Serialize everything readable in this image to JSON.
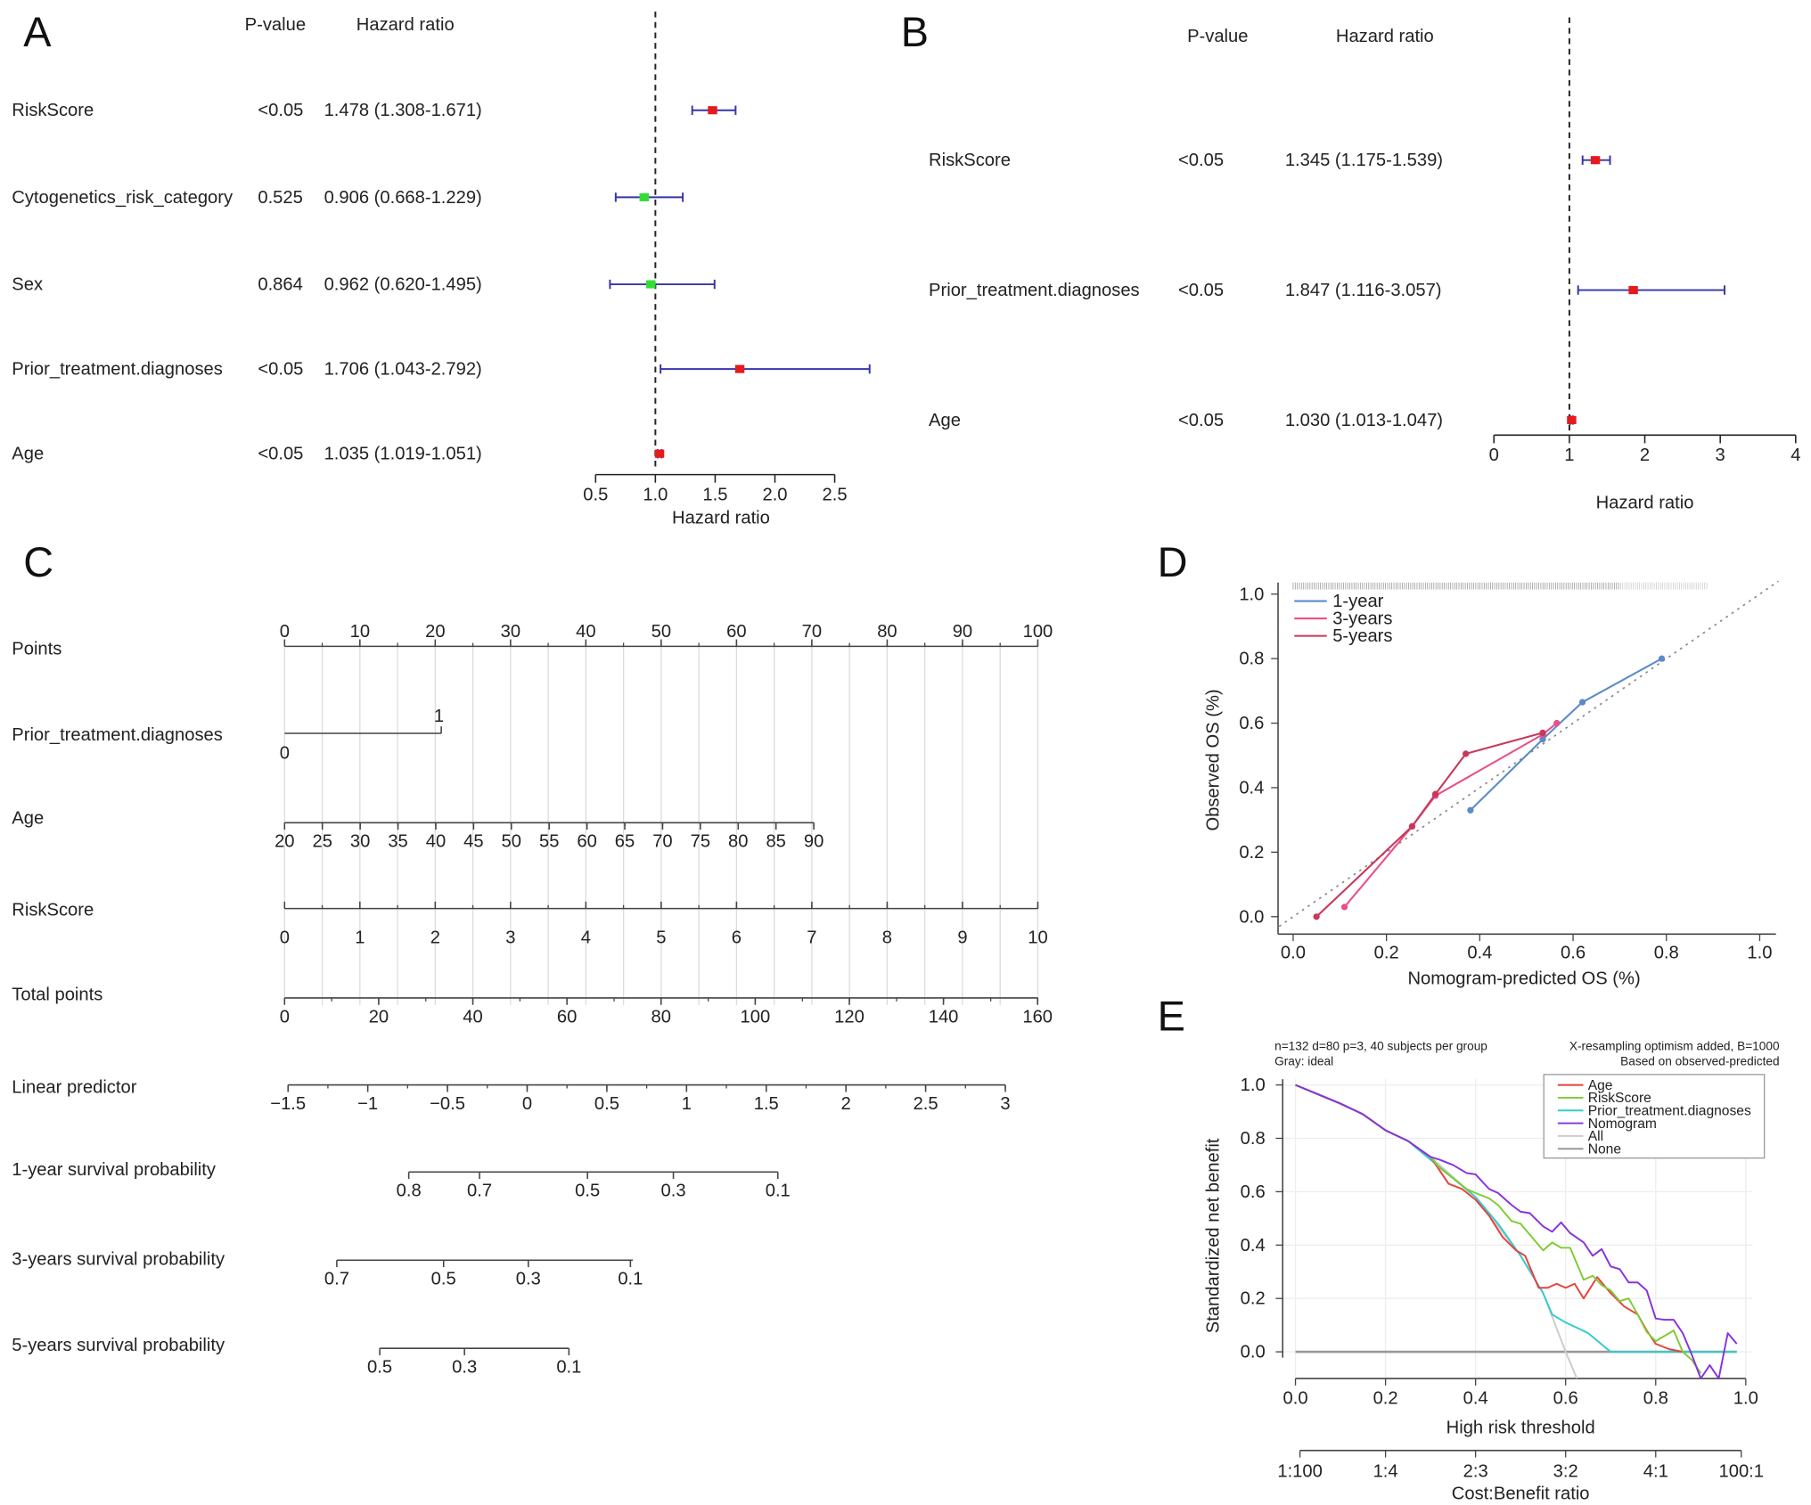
{
  "panels": [
    "A",
    "B",
    "C",
    "D",
    "E"
  ],
  "chart_data": [
    {
      "type": "forest",
      "panel": "A",
      "col_headers": [
        "P-value",
        "Hazard ratio"
      ],
      "xlabel": "Hazard ratio",
      "xlim": [
        0.5,
        2.5
      ],
      "ticks": [
        "0.5",
        "1.0",
        "1.5",
        "2.0",
        "2.5"
      ],
      "reference_line": 1,
      "rows": [
        {
          "label": "RiskScore",
          "p": "<0.05",
          "hr_text": "1.478 (1.308-1.671)",
          "hr": 1.478,
          "lo": 1.308,
          "hi": 1.671,
          "color": "#e41a1c"
        },
        {
          "label": "Cytogenetics_risk_category",
          "p": "0.525",
          "hr_text": "0.906 (0.668-1.229)",
          "hr": 0.906,
          "lo": 0.668,
          "hi": 1.229,
          "color": "#33dd33"
        },
        {
          "label": "Sex",
          "p": "0.864",
          "hr_text": "0.962 (0.620-1.495)",
          "hr": 0.962,
          "lo": 0.62,
          "hi": 1.495,
          "color": "#33dd33"
        },
        {
          "label": "Prior_treatment.diagnoses",
          "p": "<0.05",
          "hr_text": "1.706 (1.043-2.792)",
          "hr": 1.706,
          "lo": 1.043,
          "hi": 2.792,
          "color": "#e41a1c"
        },
        {
          "label": "Age",
          "p": "<0.05",
          "hr_text": "1.035 (1.019-1.051)",
          "hr": 1.035,
          "lo": 1.019,
          "hi": 1.051,
          "color": "#e41a1c"
        }
      ]
    },
    {
      "type": "forest",
      "panel": "B",
      "col_headers": [
        "P-value",
        "Hazard ratio"
      ],
      "xlabel": "Hazard ratio",
      "xlim": [
        0,
        4
      ],
      "ticks": [
        "0",
        "1",
        "2",
        "3",
        "4"
      ],
      "reference_line": 1,
      "rows": [
        {
          "label": "RiskScore",
          "p": "<0.05",
          "hr_text": "1.345 (1.175-1.539)",
          "hr": 1.345,
          "lo": 1.175,
          "hi": 1.539,
          "color": "#e41a1c"
        },
        {
          "label": "Prior_treatment.diagnoses",
          "p": "<0.05",
          "hr_text": "1.847 (1.116-3.057)",
          "hr": 1.847,
          "lo": 1.116,
          "hi": 3.057,
          "color": "#e41a1c"
        },
        {
          "label": "Age",
          "p": "<0.05",
          "hr_text": "1.030 (1.013-1.047)",
          "hr": 1.03,
          "lo": 1.013,
          "hi": 1.047,
          "color": "#e41a1c"
        }
      ]
    },
    {
      "type": "nomogram",
      "panel": "C",
      "scales": [
        {
          "label": "Points",
          "ticks": [
            "0",
            "10",
            "20",
            "30",
            "40",
            "50",
            "60",
            "70",
            "80",
            "90",
            "100"
          ]
        },
        {
          "label": "Prior_treatment.diagnoses",
          "ticks": [
            "0",
            "1"
          ]
        },
        {
          "label": "Age",
          "ticks": [
            "20",
            "25",
            "30",
            "35",
            "40",
            "45",
            "50",
            "55",
            "60",
            "65",
            "70",
            "75",
            "80",
            "85",
            "90"
          ]
        },
        {
          "label": "RiskScore",
          "ticks": [
            "0",
            "1",
            "2",
            "3",
            "4",
            "5",
            "6",
            "7",
            "8",
            "9",
            "10"
          ]
        },
        {
          "label": "Total points",
          "ticks": [
            "0",
            "20",
            "40",
            "60",
            "80",
            "100",
            "120",
            "140",
            "160"
          ]
        },
        {
          "label": "Linear predictor",
          "ticks": [
            "−1.5",
            "−1",
            "−0.5",
            "0",
            "0.5",
            "1",
            "1.5",
            "2",
            "2.5",
            "3"
          ]
        },
        {
          "label": "1-year survival probability",
          "ticks": [
            "0.8",
            "0.7",
            "0.5",
            "0.3",
            "0.1"
          ]
        },
        {
          "label": "3-years survival probability",
          "ticks": [
            "0.7",
            "0.5",
            "0.3",
            "0.1"
          ]
        },
        {
          "label": "5-years survival probability",
          "ticks": [
            "0.5",
            "0.3",
            "0.1"
          ]
        }
      ]
    },
    {
      "type": "line",
      "panel": "D",
      "xlabel": "Nomogram-predicted OS (%)",
      "ylabel": "Observed OS (%)",
      "xlim": [
        0,
        1
      ],
      "ylim": [
        0,
        1
      ],
      "ticks": [
        "0.0",
        "0.2",
        "0.4",
        "0.6",
        "0.8",
        "1.0"
      ],
      "legend": "top-left",
      "ideal_line": "dotted diagonal",
      "series": [
        {
          "name": "1-year",
          "color": "#5b8bc9",
          "x": [
            0.38,
            0.535,
            0.62,
            0.79
          ],
          "y": [
            0.33,
            0.55,
            0.665,
            0.8
          ]
        },
        {
          "name": "3-years",
          "color": "#e8508a",
          "x": [
            0.11,
            0.255,
            0.305,
            0.535,
            0.565
          ],
          "y": [
            0.03,
            0.28,
            0.375,
            0.565,
            0.6
          ]
        },
        {
          "name": "5-years",
          "color": "#c8385a",
          "x": [
            0.05,
            0.255,
            0.305,
            0.37,
            0.535
          ],
          "y": [
            0.0,
            0.28,
            0.38,
            0.505,
            0.57
          ]
        }
      ]
    },
    {
      "type": "line",
      "panel": "E",
      "xlabel": "High risk threshold",
      "ylabel": "Standardized net benefit",
      "xlim": [
        0,
        1
      ],
      "ylim": [
        -0.1,
        1
      ],
      "xticks": [
        "0.0",
        "0.2",
        "0.4",
        "0.6",
        "0.8",
        "1.0"
      ],
      "yticks": [
        "0.0",
        "0.2",
        "0.4",
        "0.6",
        "0.8",
        "1.0"
      ],
      "secondary_xlabel": "Cost:Benefit ratio",
      "secondary_ticks": [
        "1:100",
        "1:4",
        "2:3",
        "3:2",
        "4:1",
        "100:1"
      ],
      "notes": [
        "n=132 d=80 p=3, 40 subjects per group",
        "Gray: ideal",
        "X-resampling optimism added, B=1000",
        "Based on observed-predicted"
      ],
      "legend": "top-right",
      "series": [
        {
          "name": "Age",
          "color": "#e8413c",
          "x": [
            0,
            0.05,
            0.1,
            0.15,
            0.2,
            0.25,
            0.3,
            0.32,
            0.34,
            0.37,
            0.4,
            0.43,
            0.46,
            0.49,
            0.51,
            0.54,
            0.56,
            0.58,
            0.6,
            0.62,
            0.64,
            0.67,
            0.7,
            0.73,
            0.76,
            0.78,
            0.8,
            0.83,
            0.86
          ],
          "y": [
            1,
            0.965,
            0.93,
            0.89,
            0.83,
            0.79,
            0.73,
            0.68,
            0.63,
            0.61,
            0.57,
            0.51,
            0.43,
            0.38,
            0.36,
            0.24,
            0.24,
            0.255,
            0.24,
            0.255,
            0.2,
            0.28,
            0.22,
            0.17,
            0.14,
            0.08,
            0.03,
            0.01,
            0
          ]
        },
        {
          "name": "RiskScore",
          "color": "#7fcc33",
          "x": [
            0,
            0.05,
            0.1,
            0.15,
            0.2,
            0.25,
            0.3,
            0.32,
            0.35,
            0.38,
            0.4,
            0.43,
            0.45,
            0.48,
            0.5,
            0.52,
            0.55,
            0.57,
            0.59,
            0.61,
            0.64,
            0.66,
            0.68,
            0.7,
            0.72,
            0.74,
            0.76,
            0.78,
            0.8,
            0.82,
            0.84,
            0.86,
            0.88,
            0.9
          ],
          "y": [
            1,
            0.965,
            0.93,
            0.89,
            0.83,
            0.79,
            0.73,
            0.69,
            0.65,
            0.61,
            0.595,
            0.575,
            0.55,
            0.49,
            0.48,
            0.44,
            0.38,
            0.41,
            0.39,
            0.39,
            0.27,
            0.285,
            0.25,
            0.23,
            0.19,
            0.2,
            0.14,
            0.075,
            0.04,
            0.06,
            0.08,
            0,
            -0.03,
            -0.08
          ]
        },
        {
          "name": "Prior_treatment.diagnoses",
          "color": "#33cccc",
          "x": [
            0,
            0.05,
            0.1,
            0.15,
            0.2,
            0.25,
            0.3,
            0.35,
            0.4,
            0.45,
            0.5,
            0.55,
            0.57,
            0.6,
            0.65,
            0.7,
            0.98
          ],
          "y": [
            1,
            0.965,
            0.93,
            0.89,
            0.83,
            0.79,
            0.72,
            0.65,
            0.58,
            0.48,
            0.36,
            0.22,
            0.14,
            0.11,
            0.07,
            0,
            0
          ]
        },
        {
          "name": "Nomogram",
          "color": "#8833dd",
          "x": [
            0,
            0.05,
            0.1,
            0.15,
            0.2,
            0.25,
            0.3,
            0.32,
            0.35,
            0.38,
            0.4,
            0.43,
            0.45,
            0.48,
            0.5,
            0.52,
            0.55,
            0.57,
            0.59,
            0.61,
            0.64,
            0.66,
            0.68,
            0.7,
            0.72,
            0.74,
            0.76,
            0.78,
            0.8,
            0.82,
            0.84,
            0.86,
            0.88,
            0.9,
            0.92,
            0.94,
            0.96,
            0.98
          ],
          "y": [
            1,
            0.965,
            0.93,
            0.89,
            0.83,
            0.79,
            0.73,
            0.72,
            0.7,
            0.67,
            0.665,
            0.61,
            0.595,
            0.55,
            0.525,
            0.52,
            0.47,
            0.45,
            0.485,
            0.445,
            0.41,
            0.36,
            0.385,
            0.32,
            0.31,
            0.26,
            0.26,
            0.23,
            0.125,
            0.12,
            0.12,
            0.07,
            -0.01,
            -0.1,
            -0.05,
            -0.1,
            0.07,
            0.03
          ]
        },
        {
          "name": "All",
          "color": "#cccccc",
          "x": [
            0,
            0.05,
            0.1,
            0.15,
            0.2,
            0.25,
            0.3,
            0.4,
            0.5,
            0.55,
            0.6,
            0.625
          ],
          "y": [
            1,
            0.965,
            0.93,
            0.89,
            0.83,
            0.79,
            0.73,
            0.58,
            0.36,
            0.22,
            0,
            -0.1
          ]
        },
        {
          "name": "None",
          "color": "#999999",
          "x": [
            0,
            0.98
          ],
          "y": [
            0,
            0
          ]
        }
      ]
    }
  ]
}
